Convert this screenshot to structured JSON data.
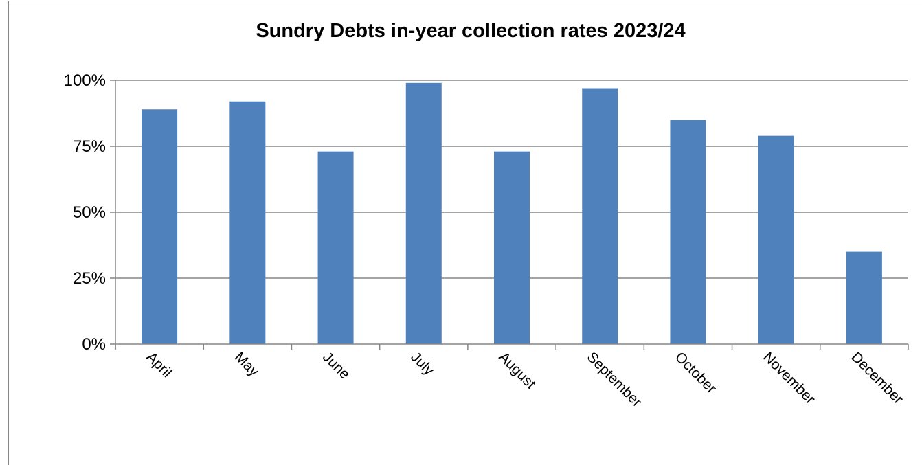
{
  "chart_data": {
    "type": "bar",
    "title": "Sundry Debts in-year collection rates 2023/24",
    "xlabel": "",
    "ylabel": "",
    "categories": [
      "April",
      "May",
      "June",
      "July",
      "August",
      "September",
      "October",
      "November",
      "December"
    ],
    "values": [
      89,
      92,
      73,
      99,
      73,
      97,
      85,
      79,
      35
    ],
    "ylim": [
      0,
      100
    ],
    "y_ticks": [
      {
        "value": 0,
        "label": "0%"
      },
      {
        "value": 25,
        "label": "25%"
      },
      {
        "value": 50,
        "label": "50%"
      },
      {
        "value": 75,
        "label": "75%"
      },
      {
        "value": 100,
        "label": "100%"
      }
    ],
    "grid": true,
    "legend": "none",
    "bar_color": "#4f81bd",
    "grid_color": "#868686"
  }
}
